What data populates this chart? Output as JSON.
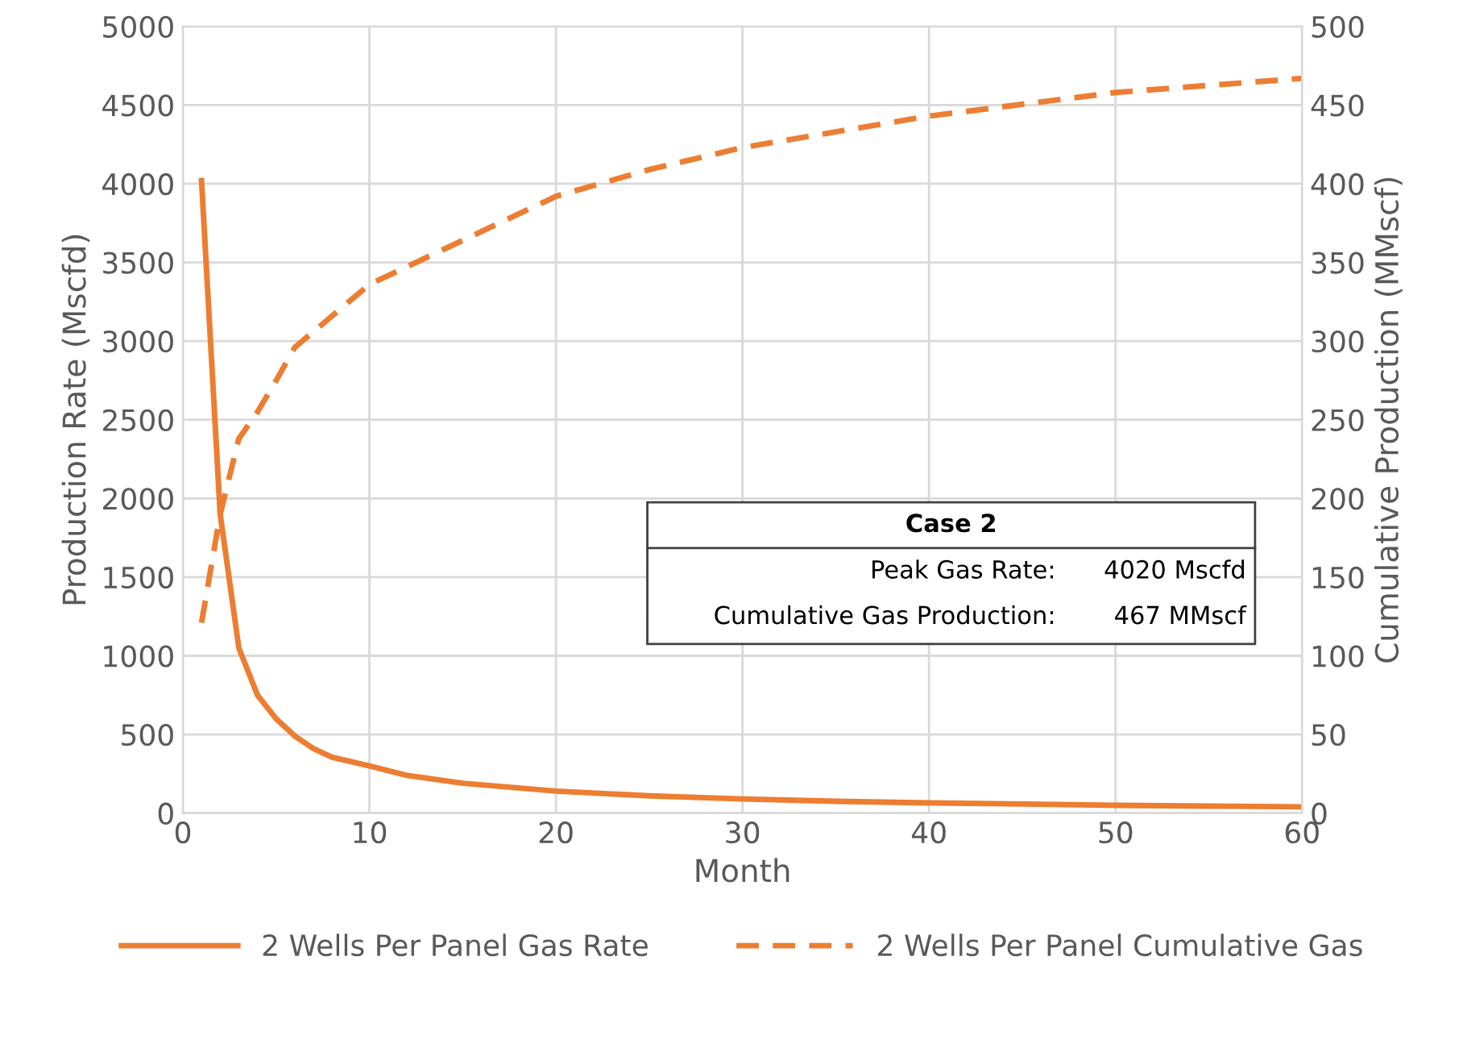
{
  "chart_data": {
    "type": "line",
    "xlabel": "Month",
    "ylabel": "Production Rate (Mscfd)",
    "y2label": "Cumulative Production (MMscf)",
    "xlim": [
      0,
      60
    ],
    "xticks": [
      0,
      10,
      20,
      30,
      40,
      50,
      60
    ],
    "ylim": [
      0,
      5000
    ],
    "yticks": [
      0,
      500,
      1000,
      1500,
      2000,
      2500,
      3000,
      3500,
      4000,
      4500,
      5000
    ],
    "y2lim": [
      0,
      500
    ],
    "y2ticks": [
      0,
      50,
      100,
      150,
      200,
      250,
      300,
      350,
      400,
      450,
      500
    ],
    "grid": true,
    "legend": "bottom",
    "annotations": [
      "Case 2",
      "Peak Gas Rate:",
      "4020 Mscfd",
      "Cumulative Gas Production:",
      "467 MMscf"
    ],
    "series": [
      {
        "name": "2 Wells Per Panel Gas Rate",
        "color": "#ed7d31",
        "line_style": "solid",
        "x": [
          1,
          2,
          3,
          4,
          5,
          6,
          7,
          8,
          10,
          12,
          15,
          20,
          25,
          30,
          35,
          40,
          45,
          50,
          55,
          60
        ],
        "values": [
          4020,
          1900,
          1050,
          750,
          600,
          490,
          410,
          355,
          300,
          240,
          190,
          140,
          110,
          90,
          75,
          65,
          58,
          50,
          45,
          40
        ]
      },
      {
        "name": "2 Wells Per Panel Cumulative Gas",
        "color": "#ed7d31",
        "line_style": "dashed",
        "axis": "y2",
        "x": [
          1,
          2,
          3,
          4,
          5,
          6,
          8,
          10,
          15,
          20,
          25,
          30,
          40,
          50,
          60
        ],
        "values": [
          121,
          190,
          238,
          255,
          275,
          296,
          316,
          336,
          364,
          392,
          409,
          423,
          443,
          458,
          467
        ]
      }
    ]
  }
}
